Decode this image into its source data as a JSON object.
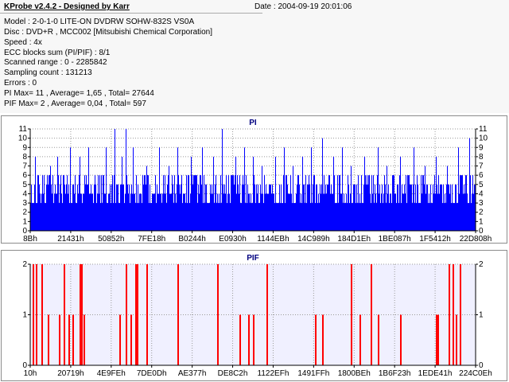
{
  "header": {
    "app_title": "KProbe v2.4.2 - Designed by Karr",
    "date_label": "Date : 2004-09-19 20:01:06"
  },
  "info": {
    "model": "Model : 2-0-1-0 LITE-ON DVDRW SOHW-832S  VS0A",
    "disc": "Disc : DVD+R , MCC002 [Mitsubishi Chemical Corporation]",
    "speed": "Speed : 4x",
    "ecc_sum": "ECC blocks sum (PI/PIF) : 8/1",
    "scanned_range": "Scanned range : 0 - 2285842",
    "sampling_count": "Sampling count : 131213",
    "errors": "Errors : 0",
    "pi_stats": "PI Max= 11 , Average= 1,65 , Total= 27644",
    "pif_stats": "PIF Max= 2 , Average= 0,04 , Total= 597"
  },
  "colors": {
    "pi_bar": "#0000ff",
    "pif_bar": "#ff0000",
    "pif_bg": "#f0f0ff",
    "panel_bg": "#ffffff",
    "title": "#000080"
  },
  "chart_data": [
    {
      "type": "bar",
      "title": "PI",
      "xlabel": "",
      "ylabel": "",
      "ylim": [
        0,
        11
      ],
      "yticks": [
        0,
        1,
        2,
        3,
        4,
        5,
        6,
        7,
        8,
        9,
        10,
        11
      ],
      "x_tick_labels": [
        "8Bh",
        "21431h",
        "50852h",
        "7FE18h",
        "B0244h",
        "E0930h",
        "1144EBh",
        "14C989h",
        "184D1Eh",
        "1BE087h",
        "1F5412h",
        "22D808h"
      ],
      "grid": true,
      "baseline_range": [
        3,
        6
      ],
      "spikes": [
        {
          "pos": 0.01,
          "value": 8
        },
        {
          "pos": 0.03,
          "value": 6
        },
        {
          "pos": 0.045,
          "value": 7
        },
        {
          "pos": 0.06,
          "value": 8
        },
        {
          "pos": 0.09,
          "value": 9
        },
        {
          "pos": 0.11,
          "value": 8
        },
        {
          "pos": 0.13,
          "value": 9
        },
        {
          "pos": 0.155,
          "value": 6
        },
        {
          "pos": 0.17,
          "value": 9
        },
        {
          "pos": 0.19,
          "value": 11
        },
        {
          "pos": 0.205,
          "value": 8
        },
        {
          "pos": 0.215,
          "value": 11
        },
        {
          "pos": 0.23,
          "value": 9
        },
        {
          "pos": 0.26,
          "value": 7
        },
        {
          "pos": 0.29,
          "value": 9
        },
        {
          "pos": 0.31,
          "value": 7
        },
        {
          "pos": 0.33,
          "value": 9
        },
        {
          "pos": 0.36,
          "value": 8
        },
        {
          "pos": 0.385,
          "value": 9
        },
        {
          "pos": 0.41,
          "value": 8
        },
        {
          "pos": 0.43,
          "value": 11
        },
        {
          "pos": 0.46,
          "value": 8
        },
        {
          "pos": 0.48,
          "value": 9
        },
        {
          "pos": 0.5,
          "value": 8
        },
        {
          "pos": 0.52,
          "value": 7
        },
        {
          "pos": 0.55,
          "value": 8
        },
        {
          "pos": 0.57,
          "value": 9
        },
        {
          "pos": 0.59,
          "value": 7
        },
        {
          "pos": 0.61,
          "value": 8
        },
        {
          "pos": 0.63,
          "value": 9
        },
        {
          "pos": 0.655,
          "value": 10
        },
        {
          "pos": 0.68,
          "value": 8
        },
        {
          "pos": 0.7,
          "value": 9
        },
        {
          "pos": 0.72,
          "value": 7
        },
        {
          "pos": 0.75,
          "value": 8
        },
        {
          "pos": 0.78,
          "value": 9
        },
        {
          "pos": 0.8,
          "value": 7
        },
        {
          "pos": 0.83,
          "value": 8
        },
        {
          "pos": 0.86,
          "value": 9
        },
        {
          "pos": 0.885,
          "value": 7
        },
        {
          "pos": 0.91,
          "value": 8
        },
        {
          "pos": 0.935,
          "value": 7
        },
        {
          "pos": 0.96,
          "value": 9
        },
        {
          "pos": 0.985,
          "value": 10
        }
      ]
    },
    {
      "type": "bar",
      "title": "PIF",
      "xlabel": "",
      "ylabel": "",
      "ylim": [
        0,
        2
      ],
      "yticks": [
        0,
        1,
        2
      ],
      "x_tick_labels": [
        "10h",
        "20719h",
        "4E9FEh",
        "7DE0Dh",
        "AE377h",
        "DE8C2h",
        "1122EFh",
        "1491FFh",
        "1800BEh",
        "1B6F23h",
        "1EDE41h",
        "224C0Eh"
      ],
      "grid": true,
      "spikes": [
        {
          "pos": 0.005,
          "value": 2
        },
        {
          "pos": 0.012,
          "value": 2
        },
        {
          "pos": 0.025,
          "value": 2
        },
        {
          "pos": 0.04,
          "value": 1
        },
        {
          "pos": 0.065,
          "value": 1
        },
        {
          "pos": 0.075,
          "value": 2
        },
        {
          "pos": 0.085,
          "value": 1
        },
        {
          "pos": 0.095,
          "value": 1
        },
        {
          "pos": 0.11,
          "value": 2
        },
        {
          "pos": 0.115,
          "value": 2
        },
        {
          "pos": 0.12,
          "value": 1
        },
        {
          "pos": 0.2,
          "value": 1
        },
        {
          "pos": 0.215,
          "value": 2
        },
        {
          "pos": 0.225,
          "value": 1
        },
        {
          "pos": 0.235,
          "value": 2
        },
        {
          "pos": 0.24,
          "value": 2
        },
        {
          "pos": 0.26,
          "value": 2
        },
        {
          "pos": 0.33,
          "value": 2
        },
        {
          "pos": 0.42,
          "value": 2
        },
        {
          "pos": 0.47,
          "value": 1
        },
        {
          "pos": 0.49,
          "value": 1
        },
        {
          "pos": 0.5,
          "value": 1
        },
        {
          "pos": 0.53,
          "value": 2
        },
        {
          "pos": 0.64,
          "value": 1
        },
        {
          "pos": 0.655,
          "value": 1
        },
        {
          "pos": 0.72,
          "value": 2
        },
        {
          "pos": 0.74,
          "value": 1
        },
        {
          "pos": 0.765,
          "value": 2
        },
        {
          "pos": 0.78,
          "value": 1
        },
        {
          "pos": 0.83,
          "value": 1
        },
        {
          "pos": 0.91,
          "value": 1
        },
        {
          "pos": 0.915,
          "value": 1
        },
        {
          "pos": 0.94,
          "value": 2
        },
        {
          "pos": 0.948,
          "value": 2
        },
        {
          "pos": 0.955,
          "value": 1
        },
        {
          "pos": 0.965,
          "value": 2
        }
      ]
    }
  ]
}
